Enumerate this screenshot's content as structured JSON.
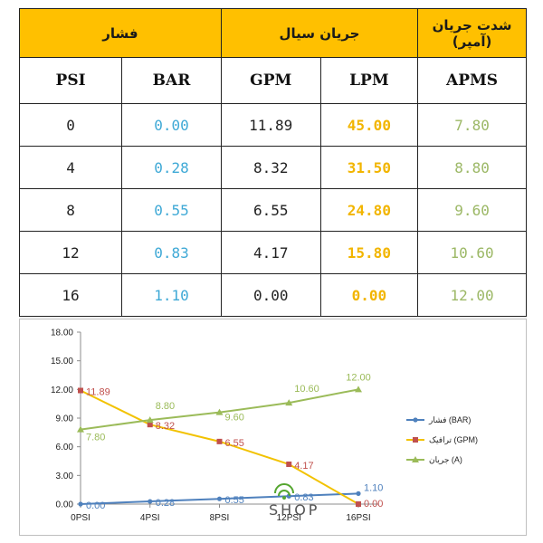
{
  "table": {
    "group_headers": {
      "pressure": "فشار",
      "flow": "جریان سیال",
      "current": "شدت جریان (آمپر)"
    },
    "columns": [
      "PSI",
      "BAR",
      "GPM",
      "LPM",
      "APMS"
    ],
    "rows": [
      [
        "0",
        "0.00",
        "11.89",
        "45.00",
        "7.80"
      ],
      [
        "4",
        "0.28",
        "8.32",
        "31.50",
        "8.80"
      ],
      [
        "8",
        "0.55",
        "6.55",
        "24.80",
        "9.60"
      ],
      [
        "12",
        "0.83",
        "4.17",
        "15.80",
        "10.60"
      ],
      [
        "16",
        "1.10",
        "0.00",
        "0.00",
        "12.00"
      ]
    ],
    "colors": {
      "header_bg": "#ffc000",
      "bar": "#3fa9d6",
      "lpm": "#f2b500",
      "apms": "#9cb866"
    }
  },
  "chart_data": {
    "type": "line",
    "categories": [
      "0PSI",
      "4PSI",
      "8PSI",
      "12PSI",
      "16PSI"
    ],
    "ylim": [
      0,
      18
    ],
    "yticks": [
      "0.00",
      "3.00",
      "6.00",
      "9.00",
      "12.00",
      "15.00",
      "18.00"
    ],
    "grid": false,
    "legend_position": "right",
    "series": [
      {
        "name": "فشار (BAR)",
        "marker": "circle",
        "color": "#4f81bd",
        "label_color": "#4f81bd",
        "values": [
          0.0,
          0.28,
          0.55,
          0.83,
          1.1
        ],
        "labels": [
          "0.00",
          "0.28",
          "0.55",
          "0.83",
          "1.10"
        ]
      },
      {
        "name": "ترافیک (GPM)",
        "marker": "square",
        "color": "#f2c200",
        "marker_color": "#c0504d",
        "label_color": "#c0504d",
        "values": [
          11.89,
          8.32,
          6.55,
          4.17,
          0.0
        ],
        "labels": [
          "11.89",
          "8.32",
          "6.55",
          "4.17",
          "0.00"
        ]
      },
      {
        "name": "جریان (A)",
        "marker": "triangle",
        "color": "#9bbb59",
        "label_color": "#9bbb59",
        "values": [
          7.8,
          8.8,
          9.6,
          10.6,
          12.0
        ],
        "labels": [
          "7.80",
          "8.80",
          "9.60",
          "10.60",
          "12.00"
        ]
      }
    ]
  },
  "watermark": "SHOP"
}
